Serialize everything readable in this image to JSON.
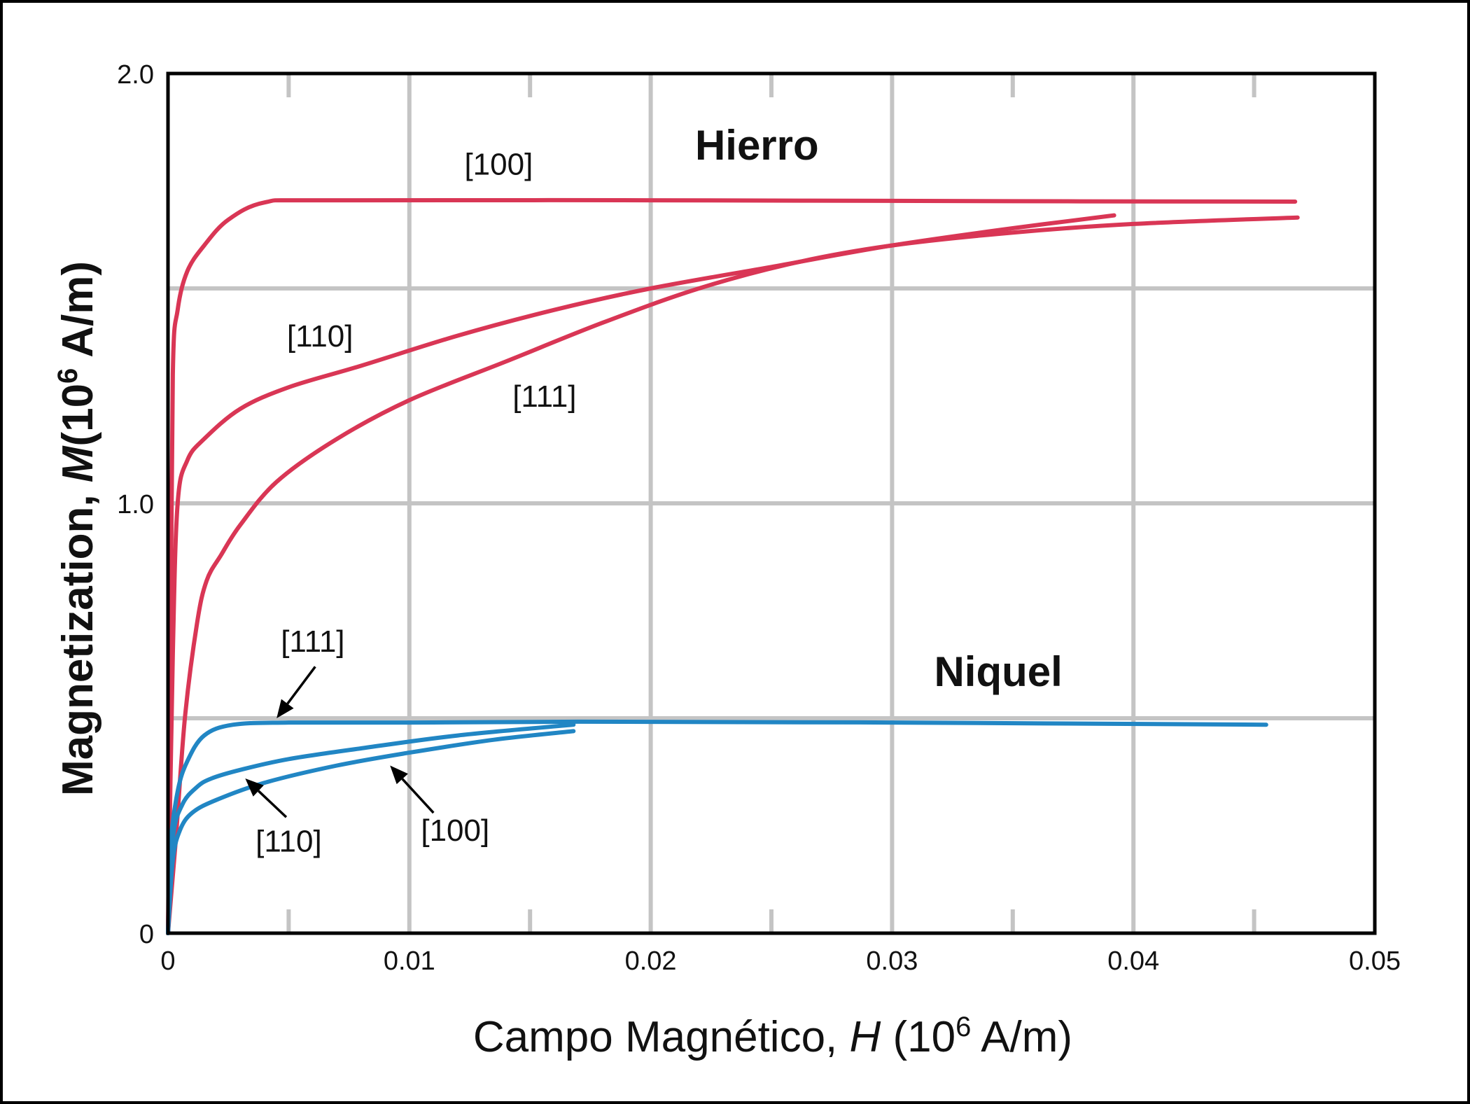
{
  "chart_data": {
    "type": "line",
    "xlabel": {
      "prefix": "Campo Magnético, ",
      "var": "H",
      "unit_open": " (10",
      "sup": "6",
      "unit_close": " A/m)"
    },
    "ylabel": {
      "prefix": "Magnetization, ",
      "var": "M",
      "unit_open": "(10",
      "sup": "6",
      "unit_close": " A/m)"
    },
    "xlim": [
      0,
      0.05
    ],
    "ylim": [
      0,
      2.0
    ],
    "grid": true,
    "x_ticks": [
      {
        "value": 0,
        "label": "0"
      },
      {
        "value": 0.01,
        "label": "0.01"
      },
      {
        "value": 0.02,
        "label": "0.02"
      },
      {
        "value": 0.03,
        "label": "0.03"
      },
      {
        "value": 0.04,
        "label": "0.04"
      },
      {
        "value": 0.05,
        "label": "0.05"
      }
    ],
    "y_ticks": [
      {
        "value": 0,
        "label": "0"
      },
      {
        "value": 1.0,
        "label": "1.0"
      },
      {
        "value": 2.0,
        "label": "2.0"
      }
    ],
    "x_grid": [
      0.005,
      0.01,
      0.015,
      0.02,
      0.025,
      0.03,
      0.035,
      0.04,
      0.045
    ],
    "y_grid": [
      0.5,
      1.0,
      1.5
    ],
    "materials": [
      {
        "name": "Hierro",
        "color": "#d93655",
        "label_at": [
          0.0244,
          1.8
        ]
      },
      {
        "name": "Niquel",
        "color": "#2186c4",
        "label_at": [
          0.0344,
          0.575
        ]
      }
    ],
    "series": [
      {
        "name": "[100]",
        "material": "Hierro",
        "label_at": [
          0.0137,
          1.765
        ],
        "points": [
          [
            0,
            0
          ],
          [
            0.0001,
            0.6
          ],
          [
            0.0002,
            1.3
          ],
          [
            0.0004,
            1.45
          ],
          [
            0.0008,
            1.54
          ],
          [
            0.0015,
            1.6
          ],
          [
            0.0025,
            1.66
          ],
          [
            0.004,
            1.7
          ],
          [
            0.0065,
            1.705
          ],
          [
            0.02,
            1.705
          ],
          [
            0.035,
            1.703
          ],
          [
            0.0467,
            1.702
          ]
        ]
      },
      {
        "name": "[110]",
        "material": "Hierro",
        "label_at": [
          0.0063,
          1.365
        ],
        "points": [
          [
            0,
            0
          ],
          [
            0.0002,
            0.65
          ],
          [
            0.0004,
            1.0
          ],
          [
            0.0008,
            1.1
          ],
          [
            0.0015,
            1.15
          ],
          [
            0.003,
            1.22
          ],
          [
            0.005,
            1.27
          ],
          [
            0.008,
            1.32
          ],
          [
            0.012,
            1.39
          ],
          [
            0.016,
            1.45
          ],
          [
            0.02,
            1.5
          ],
          [
            0.025,
            1.55
          ],
          [
            0.03,
            1.6
          ],
          [
            0.035,
            1.64
          ],
          [
            0.0392,
            1.67
          ]
        ]
      },
      {
        "name": "[111]",
        "material": "Hierro",
        "label_at": [
          0.0156,
          1.225
        ],
        "points": [
          [
            0,
            0
          ],
          [
            0.0003,
            0.2
          ],
          [
            0.0007,
            0.5
          ],
          [
            0.0012,
            0.72
          ],
          [
            0.0016,
            0.82
          ],
          [
            0.0022,
            0.88
          ],
          [
            0.003,
            0.95
          ],
          [
            0.0045,
            1.05
          ],
          [
            0.007,
            1.15
          ],
          [
            0.01,
            1.24
          ],
          [
            0.014,
            1.33
          ],
          [
            0.018,
            1.42
          ],
          [
            0.022,
            1.5
          ],
          [
            0.026,
            1.56
          ],
          [
            0.03,
            1.6
          ],
          [
            0.035,
            1.63
          ],
          [
            0.04,
            1.65
          ],
          [
            0.0468,
            1.665
          ]
        ]
      },
      {
        "name": "[111]",
        "material": "Niquel",
        "label_at": [
          0.006,
          0.655
        ],
        "points": [
          [
            0,
            0
          ],
          [
            0.0001,
            0.2
          ],
          [
            0.0004,
            0.33
          ],
          [
            0.0008,
            0.4
          ],
          [
            0.0015,
            0.46
          ],
          [
            0.0027,
            0.485
          ],
          [
            0.005,
            0.49
          ],
          [
            0.01,
            0.49
          ],
          [
            0.017,
            0.492
          ],
          [
            0.03,
            0.49
          ],
          [
            0.0455,
            0.485
          ]
        ]
      },
      {
        "name": "[110]",
        "material": "Niquel",
        "label_at": [
          0.005,
          0.19
        ],
        "points": [
          [
            0,
            0
          ],
          [
            0.0002,
            0.22
          ],
          [
            0.0006,
            0.3
          ],
          [
            0.0012,
            0.34
          ],
          [
            0.0018,
            0.36
          ],
          [
            0.003,
            0.38
          ],
          [
            0.005,
            0.405
          ],
          [
            0.008,
            0.43
          ],
          [
            0.012,
            0.46
          ],
          [
            0.0168,
            0.485
          ]
        ]
      },
      {
        "name": "[100]",
        "material": "Niquel",
        "label_at": [
          0.0119,
          0.215
        ],
        "points": [
          [
            0,
            0
          ],
          [
            0.0002,
            0.17
          ],
          [
            0.0005,
            0.24
          ],
          [
            0.001,
            0.28
          ],
          [
            0.002,
            0.31
          ],
          [
            0.004,
            0.35
          ],
          [
            0.007,
            0.39
          ],
          [
            0.01,
            0.42
          ],
          [
            0.0135,
            0.45
          ],
          [
            0.0168,
            0.47
          ]
        ]
      }
    ],
    "arrows": [
      {
        "target": "[111] Niquel",
        "from": [
          0.0061,
          0.62
        ],
        "to": [
          0.0045,
          0.5
        ]
      },
      {
        "target": "[110] Niquel",
        "from": [
          0.0049,
          0.27
        ],
        "to": [
          0.0032,
          0.36
        ]
      },
      {
        "target": "[100] Niquel",
        "from": [
          0.011,
          0.28
        ],
        "to": [
          0.0092,
          0.39
        ]
      }
    ]
  }
}
